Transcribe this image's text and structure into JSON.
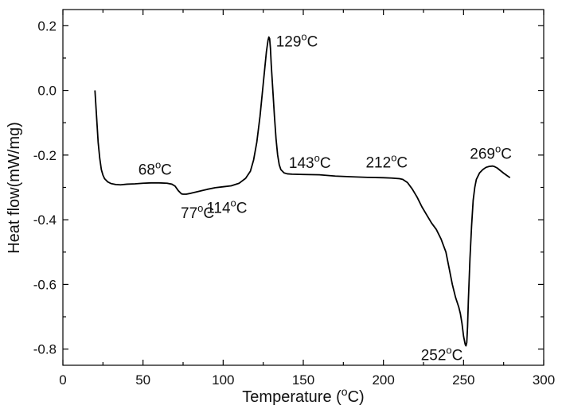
{
  "chart_data": {
    "type": "line",
    "title": "",
    "xlabel": "Temperature (°C)",
    "ylabel": "Heat flow(mW/mg)",
    "xlim": [
      0,
      300
    ],
    "ylim": [
      -0.85,
      0.25
    ],
    "grid": false,
    "legend": "none",
    "xticks": [
      0,
      50,
      100,
      150,
      200,
      250,
      300
    ],
    "yticks": [
      -0.8,
      -0.6,
      -0.4,
      -0.2,
      0.0,
      0.2
    ],
    "ytick_labels": [
      "-0.8",
      "-0.6",
      "-0.4",
      "-0.2",
      "0.0",
      "0.2"
    ],
    "line_color": "#000000",
    "series": [
      {
        "x": [
          20,
          21,
          22,
          23,
          24,
          25,
          26,
          28,
          30,
          33,
          36,
          40,
          45,
          50,
          55,
          60,
          65,
          68,
          70,
          72,
          74,
          75,
          77,
          80,
          85,
          90,
          95,
          100,
          105,
          110,
          114,
          117,
          119,
          121,
          123,
          125,
          126,
          127,
          128,
          128.5,
          129,
          129.5,
          130,
          131,
          132,
          133,
          134,
          135,
          136,
          138,
          140,
          143,
          150,
          160,
          170,
          180,
          190,
          200,
          205,
          210,
          212,
          215,
          218,
          221,
          224,
          227,
          230,
          233,
          236,
          239,
          241,
          243,
          245,
          247,
          248,
          249,
          250,
          251,
          251.5,
          252,
          252.5,
          253,
          254,
          255,
          256,
          257,
          258,
          260,
          262,
          264,
          266,
          268,
          269,
          271,
          273,
          275,
          277,
          279
        ],
        "y": [
          0.0,
          -0.08,
          -0.16,
          -0.21,
          -0.245,
          -0.262,
          -0.273,
          -0.283,
          -0.288,
          -0.291,
          -0.292,
          -0.29,
          -0.289,
          -0.287,
          -0.286,
          -0.286,
          -0.287,
          -0.29,
          -0.296,
          -0.31,
          -0.32,
          -0.321,
          -0.321,
          -0.318,
          -0.312,
          -0.306,
          -0.301,
          -0.298,
          -0.295,
          -0.287,
          -0.272,
          -0.25,
          -0.215,
          -0.16,
          -0.08,
          0.02,
          0.07,
          0.12,
          0.155,
          0.165,
          0.16,
          0.13,
          0.08,
          0.0,
          -0.08,
          -0.15,
          -0.2,
          -0.23,
          -0.245,
          -0.255,
          -0.258,
          -0.259,
          -0.26,
          -0.261,
          -0.265,
          -0.267,
          -0.269,
          -0.27,
          -0.271,
          -0.273,
          -0.275,
          -0.285,
          -0.305,
          -0.33,
          -0.36,
          -0.385,
          -0.41,
          -0.43,
          -0.46,
          -0.5,
          -0.55,
          -0.6,
          -0.64,
          -0.67,
          -0.69,
          -0.72,
          -0.76,
          -0.785,
          -0.79,
          -0.78,
          -0.73,
          -0.65,
          -0.52,
          -0.42,
          -0.34,
          -0.3,
          -0.275,
          -0.255,
          -0.245,
          -0.238,
          -0.235,
          -0.234,
          -0.235,
          -0.24,
          -0.248,
          -0.256,
          -0.263,
          -0.27
        ]
      }
    ],
    "annotations": [
      {
        "text": "68",
        "x": 68,
        "y": -0.285,
        "anchor": "end",
        "dx": 0,
        "dy": -10
      },
      {
        "text": "77",
        "x": 77,
        "y": -0.321,
        "anchor": "start",
        "dx": -7,
        "dy": 30
      },
      {
        "text": "114",
        "x": 114,
        "y": -0.3,
        "anchor": "end",
        "dx": 2,
        "dy": 32
      },
      {
        "text": "129",
        "x": 129,
        "y": 0.165,
        "anchor": "start",
        "dx": 8,
        "dy": 12
      },
      {
        "text": "143",
        "x": 143,
        "y": -0.245,
        "anchor": "start",
        "dx": -4,
        "dy": -2
      },
      {
        "text": "212",
        "x": 212,
        "y": -0.27,
        "anchor": "middle",
        "dx": -20,
        "dy": -13
      },
      {
        "text": "252",
        "x": 252,
        "y": -0.79,
        "anchor": "end",
        "dx": -5,
        "dy": 18
      },
      {
        "text": "269",
        "x": 269,
        "y": -0.234,
        "anchor": "middle",
        "dx": -4,
        "dy": -9
      }
    ],
    "annotation_unit": "C",
    "annotation_sup": "o"
  }
}
